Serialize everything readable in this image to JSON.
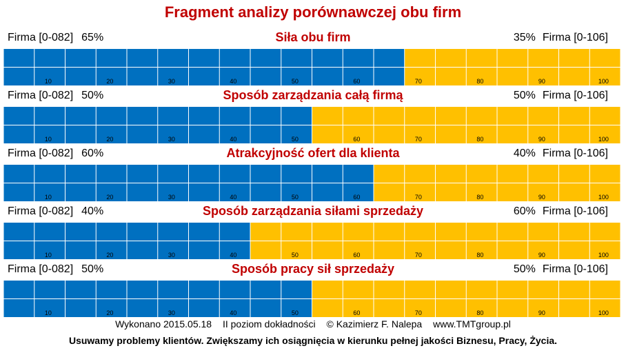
{
  "title": "Fragment analizy porównawczej obu firm",
  "colors": {
    "left_bar": "#0070c0",
    "right_bar": "#ffc000",
    "title": "#c00000",
    "cell_border": "#ffffff"
  },
  "chart_data": {
    "type": "bar",
    "orientation": "horizontal-stacked",
    "axis_ticks": [
      10,
      20,
      30,
      40,
      50,
      60,
      70,
      80,
      90,
      100
    ],
    "xlim": [
      0,
      100
    ],
    "sections": [
      {
        "title": "Siła obu firm",
        "left_label": "Firma [0-082]",
        "left_pct": 65,
        "left_pct_text": "65%",
        "right_label": "Firma [0-106]",
        "right_pct": 35,
        "right_pct_text": "35%"
      },
      {
        "title": "Sposób zarządzania całą firmą",
        "left_label": "Firma [0-082]",
        "left_pct": 50,
        "left_pct_text": "50%",
        "right_label": "Firma [0-106]",
        "right_pct": 50,
        "right_pct_text": "50%"
      },
      {
        "title": "Atrakcyjność ofert dla klienta",
        "left_label": "Firma [0-082]",
        "left_pct": 60,
        "left_pct_text": "60%",
        "right_label": "Firma [0-106]",
        "right_pct": 40,
        "right_pct_text": "40%"
      },
      {
        "title": "Sposób zarządzania siłami sprzedaży",
        "left_label": "Firma [0-082]",
        "left_pct": 40,
        "left_pct_text": "40%",
        "right_label": "Firma [0-106]",
        "right_pct": 60,
        "right_pct_text": "60%"
      },
      {
        "title": "Sposób pracy sił sprzedaży",
        "left_label": "Firma [0-082]",
        "left_pct": 50,
        "left_pct_text": "50%",
        "right_label": "Firma [0-106]",
        "right_pct": 50,
        "right_pct_text": "50%"
      }
    ]
  },
  "footer": {
    "made": "Wykonano 2015.05.18",
    "level": "II poziom dokładności",
    "author": "© Kazimierz F. Nalepa",
    "site": "www.TMTgroup.pl",
    "slogan": "Usuwamy problemy klientów. Zwiększamy ich osiągnięcia w kierunku pełnej jakości Biznesu, Pracy, Życia."
  }
}
